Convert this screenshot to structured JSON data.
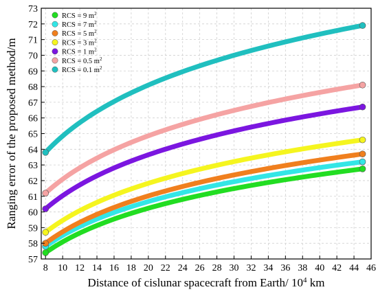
{
  "chart_data": {
    "type": "line",
    "xlabel": "Distance of cislunar spacecraft from Earth/ 10",
    "xlabel_sup": "4",
    "xlabel_unit": " km",
    "ylabel": "Ranging error of the proposed method/m",
    "xlim": [
      7.5,
      46
    ],
    "ylim": [
      57,
      73
    ],
    "x_ticks": [
      8,
      10,
      12,
      14,
      16,
      18,
      20,
      22,
      24,
      26,
      28,
      30,
      32,
      34,
      36,
      38,
      40,
      42,
      44,
      46
    ],
    "y_ticks": [
      57,
      58,
      59,
      60,
      61,
      62,
      63,
      64,
      65,
      66,
      67,
      68,
      69,
      70,
      71,
      72,
      73
    ],
    "grid": true,
    "legend_position": "top-left",
    "x_range": [
      8,
      45
    ],
    "series": [
      {
        "name": "RCS = 9 m",
        "unit_sup": "2",
        "color": "#22dd22",
        "y_start": 57.4,
        "y_end": 62.75
      },
      {
        "name": "RCS = 7 m",
        "unit_sup": "2",
        "color": "#33e6e6",
        "y_start": 57.8,
        "y_end": 63.2
      },
      {
        "name": "RCS = 5 m",
        "unit_sup": "2",
        "color": "#f07f1e",
        "y_start": 58.0,
        "y_end": 63.7
      },
      {
        "name": "RCS = 3 m",
        "unit_sup": "2",
        "color": "#f5f51f",
        "y_start": 58.7,
        "y_end": 64.6
      },
      {
        "name": "RCS = 1 m",
        "unit_sup": "2",
        "color": "#7b16e0",
        "y_start": 60.2,
        "y_end": 66.7
      },
      {
        "name": "RCS = 0.5 m",
        "unit_sup": "2",
        "color": "#f5a3a3",
        "y_start": 61.2,
        "y_end": 68.1
      },
      {
        "name": "RCS = 0.1 m",
        "unit_sup": "2",
        "color": "#20bfbf",
        "y_start": 63.8,
        "y_end": 71.9
      }
    ]
  }
}
